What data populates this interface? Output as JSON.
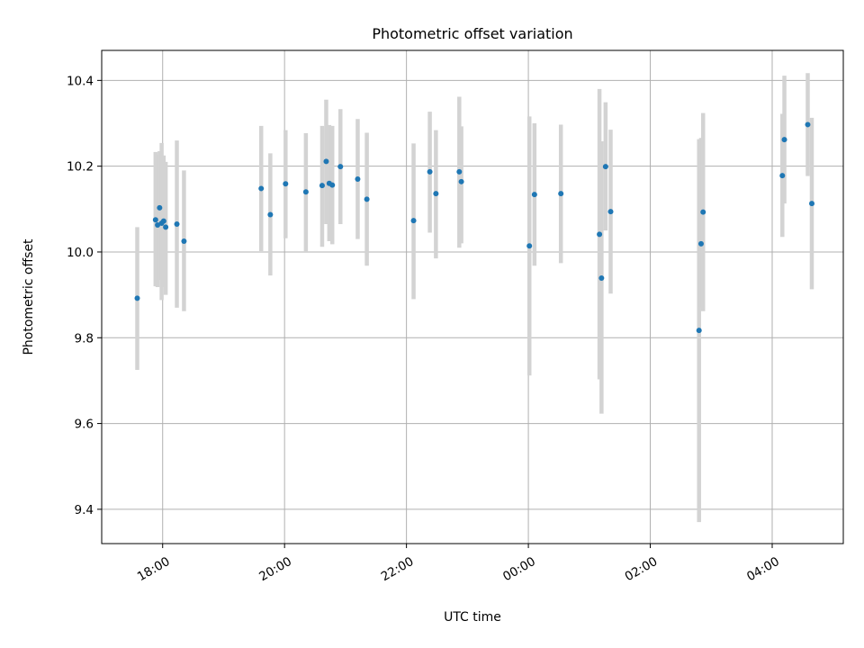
{
  "chart_data": {
    "type": "scatter",
    "title": "Photometric offset variation",
    "xlabel": "UTC time",
    "ylabel": "Photometric offset",
    "x_axis_kind": "time",
    "xlim": [
      "17:00",
      "05:10"
    ],
    "ylim": [
      9.32,
      10.47
    ],
    "x_ticks": [
      "18:00",
      "20:00",
      "22:00",
      "00:00",
      "02:00",
      "04:00"
    ],
    "y_ticks": [
      9.4,
      9.6,
      9.8,
      10.0,
      10.2,
      10.4
    ],
    "y_tick_labels": [
      "9.4",
      "9.6",
      "9.8",
      "10.0",
      "10.2",
      "10.4"
    ],
    "grid": true,
    "colors": {
      "marker": "#1f77b4",
      "errorbar": "#d3d3d3",
      "grid": "#b0b0b0"
    },
    "points": [
      {
        "x": "17:35",
        "y": 9.892,
        "err_low": 9.725,
        "err_high": 10.058
      },
      {
        "x": "17:53",
        "y": 10.075,
        "err_low": 9.92,
        "err_high": 10.233
      },
      {
        "x": "17:55",
        "y": 10.063,
        "err_low": 9.918,
        "err_high": 10.228
      },
      {
        "x": "17:57",
        "y": 10.103,
        "err_low": 9.935,
        "err_high": 10.235
      },
      {
        "x": "17:59",
        "y": 10.067,
        "err_low": 9.888,
        "err_high": 10.254
      },
      {
        "x": "18:01",
        "y": 10.072,
        "err_low": 9.918,
        "err_high": 10.225
      },
      {
        "x": "18:03",
        "y": 10.058,
        "err_low": 9.9,
        "err_high": 10.21
      },
      {
        "x": "18:14",
        "y": 10.065,
        "err_low": 9.87,
        "err_high": 10.26
      },
      {
        "x": "18:21",
        "y": 10.025,
        "err_low": 9.862,
        "err_high": 10.19
      },
      {
        "x": "19:37",
        "y": 10.148,
        "err_low": 10.002,
        "err_high": 10.294
      },
      {
        "x": "19:46",
        "y": 10.087,
        "err_low": 9.945,
        "err_high": 10.23
      },
      {
        "x": "20:01",
        "y": 10.159,
        "err_low": 10.032,
        "err_high": 10.284
      },
      {
        "x": "20:21",
        "y": 10.14,
        "err_low": 10.0,
        "err_high": 10.277
      },
      {
        "x": "20:37",
        "y": 10.155,
        "err_low": 10.012,
        "err_high": 10.294
      },
      {
        "x": "20:41",
        "y": 10.211,
        "err_low": 10.065,
        "err_high": 10.355
      },
      {
        "x": "20:44",
        "y": 10.16,
        "err_low": 10.025,
        "err_high": 10.296
      },
      {
        "x": "20:47",
        "y": 10.156,
        "err_low": 10.018,
        "err_high": 10.294
      },
      {
        "x": "20:55",
        "y": 10.199,
        "err_low": 10.065,
        "err_high": 10.333
      },
      {
        "x": "21:12",
        "y": 10.17,
        "err_low": 10.03,
        "err_high": 10.31
      },
      {
        "x": "21:21",
        "y": 10.123,
        "err_low": 9.968,
        "err_high": 10.278
      },
      {
        "x": "22:07",
        "y": 10.073,
        "err_low": 9.89,
        "err_high": 10.253
      },
      {
        "x": "22:23",
        "y": 10.187,
        "err_low": 10.045,
        "err_high": 10.327
      },
      {
        "x": "22:29",
        "y": 10.136,
        "err_low": 9.985,
        "err_high": 10.284
      },
      {
        "x": "22:52",
        "y": 10.187,
        "err_low": 10.01,
        "err_high": 10.362
      },
      {
        "x": "22:54",
        "y": 10.164,
        "err_low": 10.02,
        "err_high": 10.293
      },
      {
        "x": "00:01",
        "y": 10.014,
        "err_low": 9.712,
        "err_high": 10.316
      },
      {
        "x": "00:06",
        "y": 10.134,
        "err_low": 9.968,
        "err_high": 10.3
      },
      {
        "x": "00:32",
        "y": 10.136,
        "err_low": 9.974,
        "err_high": 10.297
      },
      {
        "x": "01:10",
        "y": 10.041,
        "err_low": 9.703,
        "err_high": 10.38
      },
      {
        "x": "01:12",
        "y": 9.939,
        "err_low": 9.623,
        "err_high": 10.258
      },
      {
        "x": "01:16",
        "y": 10.199,
        "err_low": 10.05,
        "err_high": 10.349
      },
      {
        "x": "01:21",
        "y": 10.094,
        "err_low": 9.903,
        "err_high": 10.285
      },
      {
        "x": "02:48",
        "y": 9.817,
        "err_low": 9.37,
        "err_high": 10.263
      },
      {
        "x": "02:50",
        "y": 10.019,
        "err_low": 9.87,
        "err_high": 10.266
      },
      {
        "x": "02:52",
        "y": 10.093,
        "err_low": 9.862,
        "err_high": 10.324
      },
      {
        "x": "04:10",
        "y": 10.178,
        "err_low": 10.035,
        "err_high": 10.322
      },
      {
        "x": "04:12",
        "y": 10.262,
        "err_low": 10.113,
        "err_high": 10.411
      },
      {
        "x": "04:35",
        "y": 10.297,
        "err_low": 10.177,
        "err_high": 10.417
      },
      {
        "x": "04:39",
        "y": 10.113,
        "err_low": 9.913,
        "err_high": 10.313
      }
    ]
  }
}
